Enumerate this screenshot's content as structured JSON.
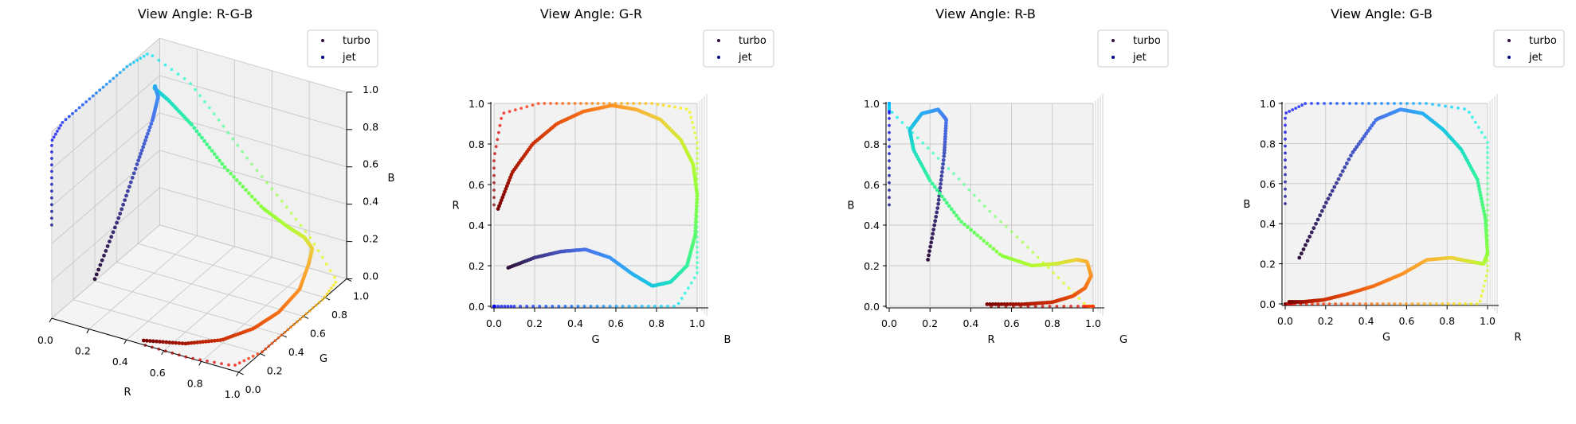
{
  "chart_data": {
    "type": "scatter",
    "space": "RGB cube (3D)",
    "axis_range": [
      0,
      1
    ],
    "tick_labels": [
      "0.0",
      "0.2",
      "0.4",
      "0.6",
      "0.8",
      "1.0"
    ],
    "legend": {
      "placement": "top-right",
      "entries": [
        "turbo",
        "jet"
      ]
    },
    "legend_colors": {
      "turbo": "#30123b",
      "jet": "#00007f"
    },
    "series": [
      {
        "name": "turbo",
        "t": [
          0,
          0.05,
          0.1,
          0.15,
          0.2,
          0.25,
          0.3,
          0.35,
          0.4,
          0.45,
          0.5,
          0.55,
          0.6,
          0.65,
          0.7,
          0.75,
          0.8,
          0.85,
          0.9,
          0.95,
          1.0
        ],
        "rgb": [
          [
            0.19,
            0.07,
            0.23
          ],
          [
            0.24,
            0.2,
            0.5
          ],
          [
            0.27,
            0.33,
            0.75
          ],
          [
            0.28,
            0.45,
            0.92
          ],
          [
            0.24,
            0.57,
            0.97
          ],
          [
            0.16,
            0.68,
            0.95
          ],
          [
            0.1,
            0.78,
            0.87
          ],
          [
            0.12,
            0.87,
            0.77
          ],
          [
            0.2,
            0.95,
            0.62
          ],
          [
            0.35,
            0.99,
            0.42
          ],
          [
            0.55,
            1.0,
            0.25
          ],
          [
            0.7,
            0.98,
            0.2
          ],
          [
            0.82,
            0.92,
            0.21
          ],
          [
            0.92,
            0.82,
            0.23
          ],
          [
            0.97,
            0.7,
            0.22
          ],
          [
            0.99,
            0.58,
            0.15
          ],
          [
            0.96,
            0.44,
            0.09
          ],
          [
            0.9,
            0.31,
            0.05
          ],
          [
            0.8,
            0.19,
            0.02
          ],
          [
            0.66,
            0.09,
            0.01
          ],
          [
            0.48,
            0.02,
            0.01
          ]
        ]
      },
      {
        "name": "jet",
        "t": [
          0,
          0.05,
          0.1,
          0.15,
          0.2,
          0.25,
          0.3,
          0.35,
          0.4,
          0.45,
          0.5,
          0.55,
          0.6,
          0.65,
          0.7,
          0.75,
          0.8,
          0.85,
          0.9,
          0.95,
          1.0
        ],
        "rgb": [
          [
            0,
            0,
            0.5
          ],
          [
            0,
            0,
            0.73
          ],
          [
            0,
            0,
            0.95
          ],
          [
            0,
            0.1,
            1
          ],
          [
            0,
            0.3,
            1
          ],
          [
            0,
            0.5,
            1
          ],
          [
            0,
            0.7,
            1
          ],
          [
            0,
            0.9,
            0.97
          ],
          [
            0.16,
            1,
            0.81
          ],
          [
            0.32,
            1,
            0.65
          ],
          [
            0.48,
            1,
            0.48
          ],
          [
            0.65,
            1,
            0.32
          ],
          [
            0.81,
            1,
            0.16
          ],
          [
            0.97,
            0.96,
            0
          ],
          [
            1,
            0.78,
            0
          ],
          [
            1,
            0.59,
            0
          ],
          [
            1,
            0.41,
            0
          ],
          [
            1,
            0.22,
            0
          ],
          [
            0.95,
            0.04,
            0
          ],
          [
            0.73,
            0,
            0
          ],
          [
            0.5,
            0,
            0
          ]
        ]
      }
    ],
    "subplots": [
      {
        "title": "View Angle: R-G-B",
        "xlabel": "R",
        "ylabel": "G",
        "zlabel": "B"
      },
      {
        "title": "View Angle: G-R",
        "xlabel": "G",
        "ylabel": "R",
        "zlabel": "B"
      },
      {
        "title": "View Angle: R-B",
        "xlabel": "R",
        "ylabel": "B",
        "zlabel": "G"
      },
      {
        "title": "View Angle: G-B",
        "xlabel": "G",
        "ylabel": "B",
        "zlabel": "R"
      }
    ]
  }
}
